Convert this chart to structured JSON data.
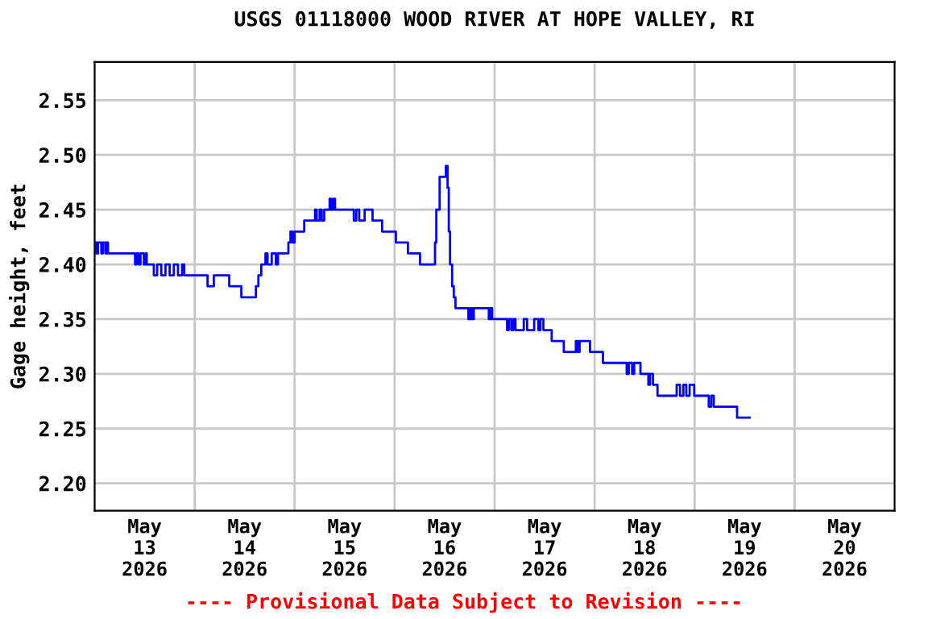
{
  "chart_data": {
    "type": "step",
    "title": "USGS 01118000 WOOD RIVER AT HOPE VALLEY, RI",
    "ylabel": "Gage height, feet",
    "annotations": [
      "---- Provisional Data Subject to Revision ----"
    ],
    "series": [
      {
        "color": "#0000ff",
        "x": [
          "2026-05-13T00:00",
          "2026-05-13T00:24",
          "2026-05-13T00:48",
          "2026-05-13T01:36",
          "2026-05-13T02:00",
          "2026-05-13T02:36",
          "2026-05-13T02:54",
          "2026-05-13T03:12",
          "2026-05-13T09:42",
          "2026-05-13T10:00",
          "2026-05-13T10:30",
          "2026-05-13T11:00",
          "2026-05-13T11:48",
          "2026-05-13T12:18",
          "2026-05-13T12:30",
          "2026-05-13T14:12",
          "2026-05-13T15:00",
          "2026-05-13T16:00",
          "2026-05-13T17:00",
          "2026-05-13T18:00",
          "2026-05-13T19:00",
          "2026-05-13T20:00",
          "2026-05-13T21:00",
          "2026-05-13T21:30",
          "2026-05-14T03:06",
          "2026-05-14T04:36",
          "2026-05-14T08:18",
          "2026-05-14T11:12",
          "2026-05-14T14:42",
          "2026-05-14T15:18",
          "2026-05-14T16:00",
          "2026-05-14T17:00",
          "2026-05-14T17:30",
          "2026-05-14T18:30",
          "2026-05-14T19:30",
          "2026-05-14T20:00",
          "2026-05-14T22:30",
          "2026-05-14T23:00",
          "2026-05-14T23:30",
          "2026-05-15T00:00",
          "2026-05-15T02:18",
          "2026-05-15T04:54",
          "2026-05-15T05:18",
          "2026-05-15T06:00",
          "2026-05-15T06:30",
          "2026-05-15T07:06",
          "2026-05-15T08:24",
          "2026-05-15T08:48",
          "2026-05-15T09:18",
          "2026-05-15T09:42",
          "2026-05-15T14:12",
          "2026-05-15T14:48",
          "2026-05-15T15:30",
          "2026-05-15T16:48",
          "2026-05-15T18:42",
          "2026-05-15T21:00",
          "2026-05-16T00:18",
          "2026-05-16T03:12",
          "2026-05-16T06:06",
          "2026-05-16T09:42",
          "2026-05-16T10:00",
          "2026-05-16T10:48",
          "2026-05-16T12:00",
          "2026-05-16T12:18",
          "2026-05-16T12:42",
          "2026-05-16T13:00",
          "2026-05-16T13:18",
          "2026-05-16T13:48",
          "2026-05-16T14:12",
          "2026-05-16T14:36",
          "2026-05-16T17:42",
          "2026-05-16T18:12",
          "2026-05-16T18:36",
          "2026-05-16T19:00",
          "2026-05-16T22:36",
          "2026-05-16T23:00",
          "2026-05-16T23:24",
          "2026-05-17T03:00",
          "2026-05-17T03:24",
          "2026-05-17T04:00",
          "2026-05-17T04:30",
          "2026-05-17T05:00",
          "2026-05-17T07:00",
          "2026-05-17T07:48",
          "2026-05-17T09:30",
          "2026-05-17T10:30",
          "2026-05-17T11:00",
          "2026-05-17T11:42",
          "2026-05-17T13:42",
          "2026-05-17T16:36",
          "2026-05-17T19:30",
          "2026-05-17T20:00",
          "2026-05-17T20:24",
          "2026-05-17T22:54",
          "2026-05-18T02:00",
          "2026-05-18T07:42",
          "2026-05-18T08:12",
          "2026-05-18T09:00",
          "2026-05-18T09:30",
          "2026-05-18T11:00",
          "2026-05-18T12:54",
          "2026-05-18T13:18",
          "2026-05-18T14:00",
          "2026-05-18T15:06",
          "2026-05-18T19:42",
          "2026-05-18T20:30",
          "2026-05-18T21:18",
          "2026-05-18T22:00",
          "2026-05-18T22:48",
          "2026-05-18T23:54",
          "2026-05-19T03:24",
          "2026-05-19T04:00",
          "2026-05-19T04:36",
          "2026-05-19T10:12",
          "2026-05-19T13:12"
        ],
        "values": [
          2.42,
          2.41,
          2.42,
          2.41,
          2.42,
          2.41,
          2.42,
          2.41,
          2.4,
          2.41,
          2.4,
          2.41,
          2.4,
          2.41,
          2.4,
          2.39,
          2.4,
          2.39,
          2.4,
          2.39,
          2.4,
          2.39,
          2.4,
          2.39,
          2.38,
          2.39,
          2.38,
          2.37,
          2.38,
          2.39,
          2.4,
          2.41,
          2.4,
          2.41,
          2.4,
          2.41,
          2.42,
          2.43,
          2.42,
          2.43,
          2.44,
          2.45,
          2.44,
          2.45,
          2.44,
          2.45,
          2.46,
          2.45,
          2.46,
          2.45,
          2.44,
          2.45,
          2.44,
          2.45,
          2.44,
          2.43,
          2.42,
          2.41,
          2.4,
          2.42,
          2.45,
          2.48,
          2.48,
          2.49,
          2.47,
          2.43,
          2.4,
          2.38,
          2.37,
          2.36,
          2.35,
          2.36,
          2.35,
          2.36,
          2.35,
          2.36,
          2.35,
          2.34,
          2.35,
          2.34,
          2.35,
          2.34,
          2.35,
          2.34,
          2.35,
          2.34,
          2.35,
          2.34,
          2.33,
          2.32,
          2.33,
          2.32,
          2.33,
          2.32,
          2.31,
          2.3,
          2.31,
          2.3,
          2.31,
          2.3,
          2.29,
          2.3,
          2.29,
          2.28,
          2.29,
          2.28,
          2.29,
          2.28,
          2.29,
          2.28,
          2.27,
          2.28,
          2.27,
          2.26,
          2.26
        ]
      }
    ],
    "xlim": [
      "2026-05-13T00:00",
      "2026-05-21T00:00"
    ],
    "xticks": [
      {
        "value": "2026-05-13T12:00",
        "label": "May\n13\n2026"
      },
      {
        "value": "2026-05-14T12:00",
        "label": "May\n14\n2026"
      },
      {
        "value": "2026-05-15T12:00",
        "label": "May\n15\n2026"
      },
      {
        "value": "2026-05-16T12:00",
        "label": "May\n16\n2026"
      },
      {
        "value": "2026-05-17T12:00",
        "label": "May\n17\n2026"
      },
      {
        "value": "2026-05-18T12:00",
        "label": "May\n18\n2026"
      },
      {
        "value": "2026-05-19T12:00",
        "label": "May\n19\n2026"
      },
      {
        "value": "2026-05-20T12:00",
        "label": "May\n20\n2026"
      },
      {
        "value": "2026-05-14T00:00",
        "label": null
      },
      {
        "value": "2026-05-15T00:00",
        "label": null
      },
      {
        "value": "2026-05-16T00:00",
        "label": null
      },
      {
        "value": "2026-05-17T00:00",
        "label": null
      },
      {
        "value": "2026-05-18T00:00",
        "label": null
      },
      {
        "value": "2026-05-19T00:00",
        "label": null
      },
      {
        "value": "2026-05-20T00:00",
        "label": null
      }
    ],
    "ylim": [
      2.175,
      2.585
    ],
    "yticks": [
      {
        "value": 2.2,
        "label": "2.20"
      },
      2.25,
      {
        "value": 2.3,
        "label": "2.30"
      },
      2.35,
      {
        "value": 2.4,
        "label": "2.40"
      },
      2.45,
      {
        "value": 2.5,
        "label": "2.50"
      },
      2.55
    ],
    "grid": true,
    "legend": false
  }
}
